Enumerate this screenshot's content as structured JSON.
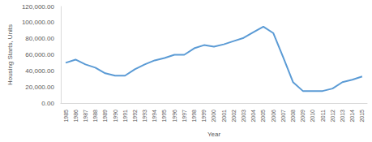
{
  "chart_data": {
    "type": "line",
    "x_label": "Year",
    "y_label": "Housing Starts, Units",
    "categories": [
      "1985",
      "1986",
      "1987",
      "1988",
      "1989",
      "1990",
      "1991",
      "1992",
      "1993",
      "1994",
      "1995",
      "1996",
      "1997",
      "1998",
      "1999",
      "2000",
      "2001",
      "2002",
      "2003",
      "2004",
      "2005",
      "2006",
      "2007",
      "2008",
      "2009",
      "2010",
      "2011",
      "2012",
      "2013",
      "2014",
      "2015"
    ],
    "values": [
      50000,
      54000,
      48000,
      44000,
      37000,
      34000,
      34000,
      42000,
      48000,
      53000,
      56000,
      60000,
      60000,
      68000,
      72000,
      70000,
      73000,
      77000,
      81000,
      88000,
      95000,
      87000,
      57000,
      26000,
      15000,
      15000,
      15000,
      18000,
      26000,
      29000,
      33000
    ],
    "color": "#5b9bd5",
    "ylim": [
      0,
      120000
    ],
    "yticks": [
      {
        "value": 0,
        "label": "0.00"
      },
      {
        "value": 20000,
        "label": "20,000.00"
      },
      {
        "value": 40000,
        "label": "40,000.00"
      },
      {
        "value": 60000,
        "label": "60,000.00"
      },
      {
        "value": 80000,
        "label": "80,000.00"
      },
      {
        "value": 100000,
        "label": "100,000.00"
      },
      {
        "value": 120000,
        "label": "120,000.00"
      }
    ],
    "grid": false
  }
}
